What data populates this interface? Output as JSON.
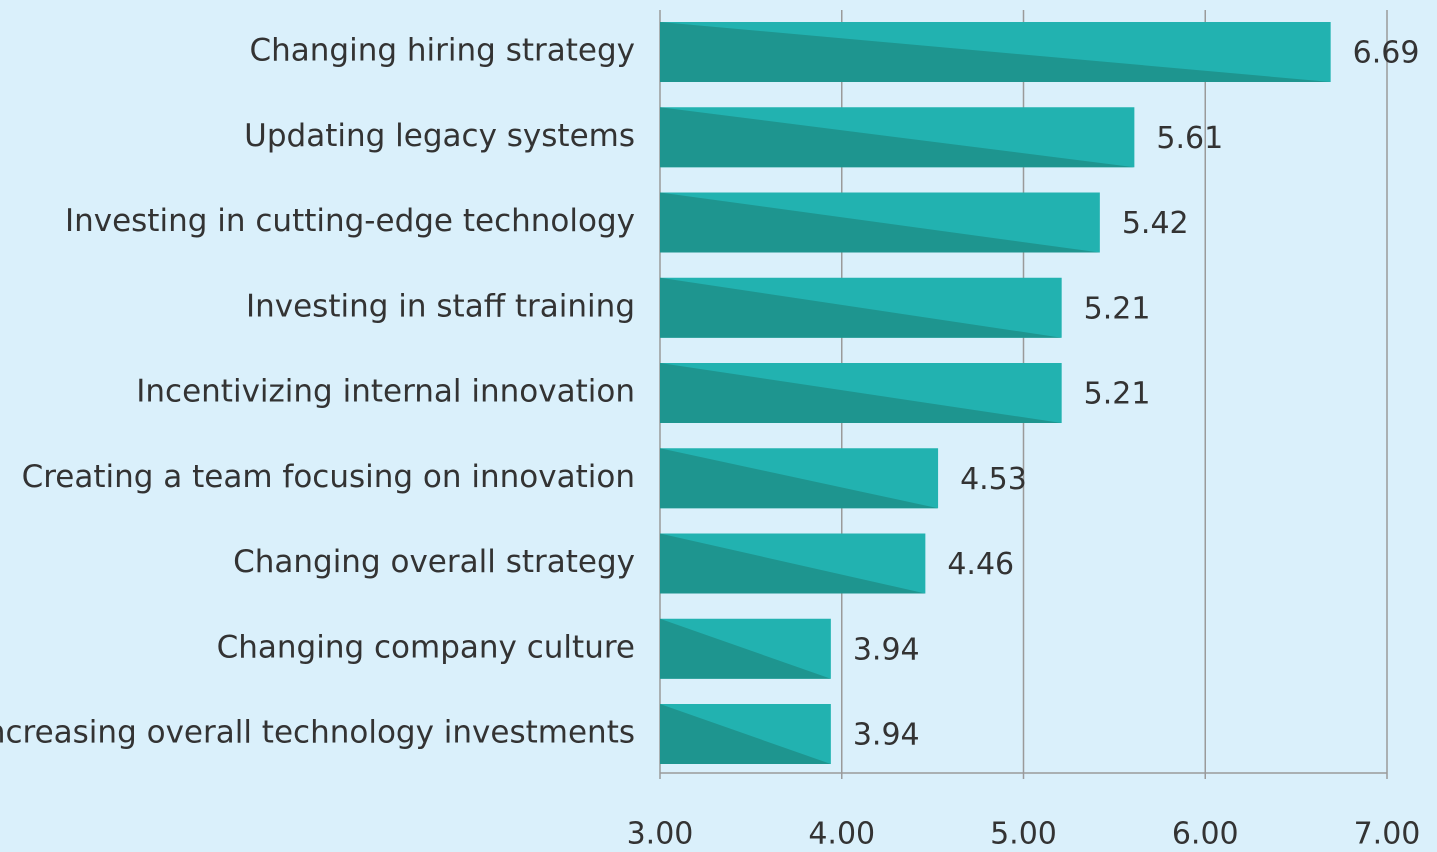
{
  "chart_data": {
    "type": "bar",
    "orientation": "horizontal",
    "categories": [
      "Changing hiring strategy",
      "Updating legacy systems",
      "Investing in cutting-edge technology",
      "Investing in staff training",
      "Incentivizing internal innovation",
      "Creating a team focusing on innovation",
      "Changing overall strategy",
      "Changing company culture",
      "Increasing overall technology investments"
    ],
    "values": [
      6.69,
      5.61,
      5.42,
      5.21,
      5.21,
      4.53,
      4.46,
      3.94,
      3.94
    ],
    "color": "#22b2b0",
    "shade_color": "#1e958f",
    "xlim": [
      3,
      7
    ],
    "xticks": [
      {
        "value": 3,
        "label": "3.00"
      },
      {
        "value": 4,
        "label": "4.00"
      },
      {
        "value": 5,
        "label": "5.00"
      },
      {
        "value": 6,
        "label": "6.00"
      },
      {
        "value": 7,
        "label": "7.00"
      }
    ],
    "grid": true
  }
}
